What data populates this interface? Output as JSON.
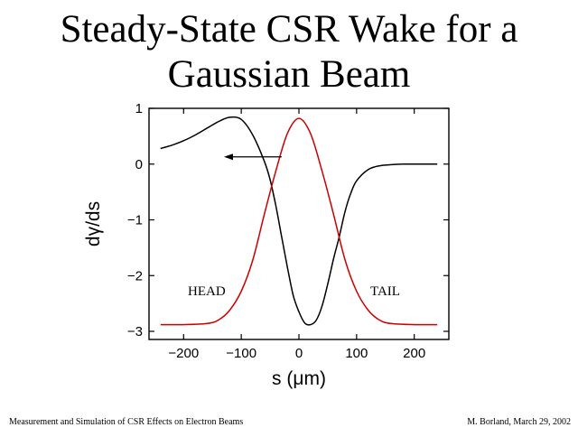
{
  "slide": {
    "title_line1": "Steady-State CSR Wake for a",
    "title_line2": "Gaussian Beam",
    "footer_left": "Measurement and Simulation of CSR Effects on Electron Beams",
    "footer_right": "M. Borland, March 29, 2002"
  },
  "chart_data": {
    "type": "line",
    "title": "",
    "xlabel": "s (μm)",
    "ylabel": "dγ/ds",
    "xlim": [
      -260,
      260
    ],
    "ylim": [
      -3.1,
      1.1
    ],
    "x_ticks": [
      -200,
      -100,
      0,
      100,
      200
    ],
    "x_tick_labels": [
      "−200",
      "−100",
      "0",
      "100",
      "200"
    ],
    "y_ticks": [
      1,
      0,
      -1,
      -2,
      -3
    ],
    "y_tick_labels": [
      "1",
      "0",
      "−1",
      "−2",
      "−3"
    ],
    "grid": false,
    "legend": "none",
    "annotations": [
      "HEAD",
      "TAIL"
    ],
    "series": [
      {
        "color": "#000000",
        "x": [
          -240,
          -220,
          -200,
          -180,
          -160,
          -140,
          -120,
          -100,
          -80,
          -60,
          -50,
          -40,
          -30,
          -20,
          -10,
          0,
          10,
          20,
          30,
          40,
          50,
          60,
          70,
          80,
          90,
          100,
          120,
          140,
          160,
          180,
          200,
          220,
          240
        ],
        "y": [
          0.28,
          0.34,
          0.42,
          0.52,
          0.64,
          0.76,
          0.84,
          0.8,
          0.52,
          0.05,
          -0.28,
          -0.75,
          -1.3,
          -1.85,
          -2.35,
          -2.65,
          -2.85,
          -2.88,
          -2.8,
          -2.55,
          -2.15,
          -1.7,
          -1.3,
          -0.85,
          -0.52,
          -0.3,
          -0.1,
          -0.03,
          -0.01,
          0.0,
          0.0,
          0.0,
          0.0
        ]
      },
      {
        "color": "#cc0000",
        "x": [
          -240,
          -200,
          -160,
          -140,
          -120,
          -100,
          -80,
          -60,
          -40,
          -20,
          0,
          20,
          40,
          60,
          80,
          100,
          120,
          140,
          160,
          200,
          240
        ],
        "y": [
          -2.88,
          -2.88,
          -2.86,
          -2.8,
          -2.62,
          -2.28,
          -1.72,
          -0.9,
          -0.12,
          0.55,
          0.82,
          0.55,
          -0.12,
          -0.9,
          -1.72,
          -2.28,
          -2.62,
          -2.8,
          -2.86,
          -2.88,
          -2.88
        ]
      }
    ],
    "arrow": {
      "from": [
        -30,
        0.13
      ],
      "to": [
        -130,
        0.13
      ]
    }
  }
}
